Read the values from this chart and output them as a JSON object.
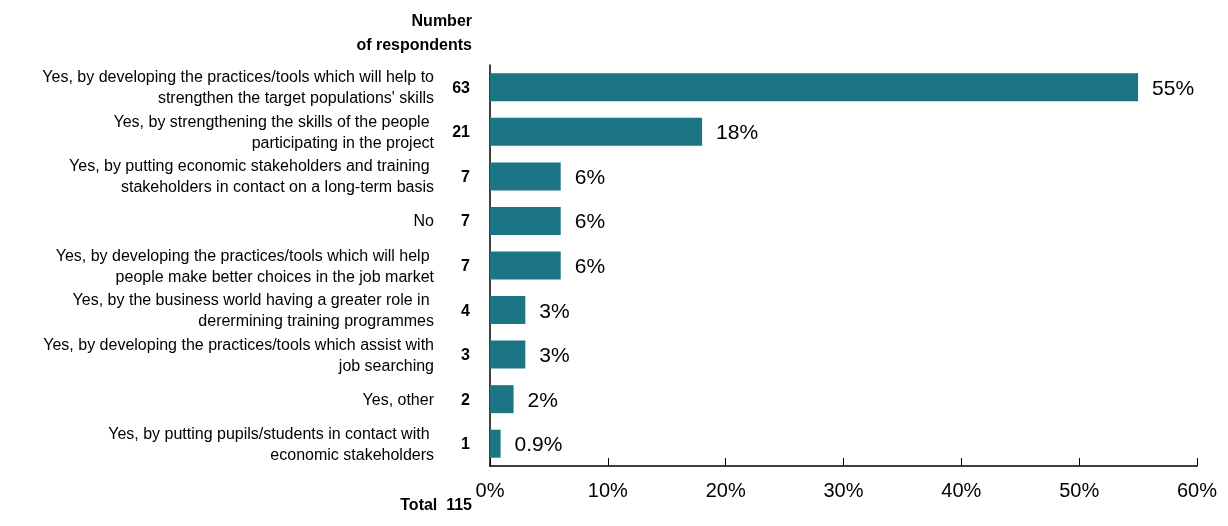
{
  "chart_data": {
    "type": "bar",
    "orientation": "horizontal",
    "categories": [
      "Yes, by developing the practices/tools which will help to strengthen the target populations' skills",
      "Yes, by strengthening the skills of the people participating in the project",
      "Yes, by putting economic stakeholders and training stakeholders in contact on a long-term basis",
      "No",
      "Yes, by developing the practices/tools which will help people make better choices in the job market",
      "Yes, by the business world having a greater role in derermining training programmes",
      "Yes, by developing the practices/tools which assist with job searching",
      "Yes, other",
      "Yes, by putting pupils/students in contact with economic stakeholders"
    ],
    "y2_categories": [
      "63",
      "21",
      "7",
      "7",
      "7",
      "4",
      "3",
      "2",
      "1"
    ],
    "y2label": "Number of respondents",
    "values": [
      55,
      18,
      6,
      6,
      6,
      3,
      3,
      2,
      0.9
    ],
    "value_labels": [
      "55%",
      "18%",
      "6%",
      "6%",
      "6%",
      "3%",
      "3%",
      "2%",
      "0.9%"
    ],
    "color": "#1b7585",
    "xlim": [
      0,
      60
    ],
    "xticks": [
      {
        "value": 0,
        "label": "0%"
      },
      {
        "value": 10,
        "label": "10%"
      },
      {
        "value": 20,
        "label": "20%"
      },
      {
        "value": 30,
        "label": "30%"
      },
      {
        "value": 40,
        "label": "40%"
      },
      {
        "value": 50,
        "label": "50%"
      },
      {
        "value": 60,
        "label": "60%"
      }
    ],
    "annotations": [
      "Total  115"
    ],
    "grid": false
  }
}
